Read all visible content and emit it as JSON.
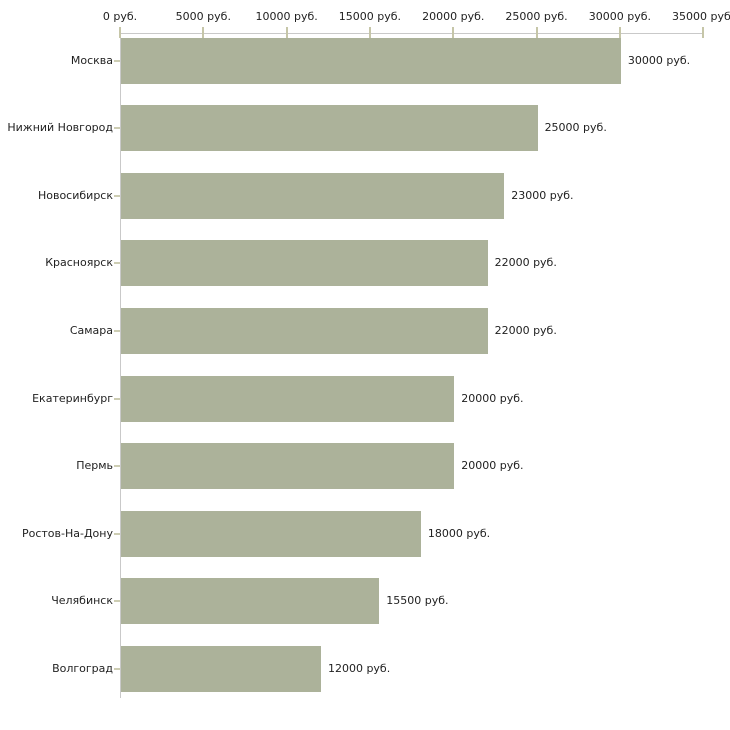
{
  "chart_data": {
    "type": "bar",
    "orientation": "horizontal",
    "title": "",
    "unit": "руб.",
    "categories": [
      "Москва",
      "Нижний Новгород",
      "Новосибирск",
      "Красноярск",
      "Самара",
      "Екатеринбург",
      "Пермь",
      "Ростов-На-Дону",
      "Челябинск",
      "Волгоград"
    ],
    "values": [
      30000,
      25000,
      23000,
      22000,
      22000,
      20000,
      20000,
      18000,
      15500,
      12000
    ],
    "value_labels": [
      "30000 руб.",
      "25000 руб.",
      "23000 руб.",
      "22000 руб.",
      "22000 руб.",
      "20000 руб.",
      "20000 руб.",
      "18000 руб.",
      "15500 руб.",
      "12000 руб."
    ],
    "x_ticks": [
      {
        "value": 0,
        "label": "0 руб."
      },
      {
        "value": 5000,
        "label": "5000 руб."
      },
      {
        "value": 10000,
        "label": "10000 руб."
      },
      {
        "value": 15000,
        "label": "15000 руб."
      },
      {
        "value": 20000,
        "label": "20000 руб."
      },
      {
        "value": 25000,
        "label": "25000 руб."
      },
      {
        "value": 30000,
        "label": "30000 руб."
      },
      {
        "value": 35000,
        "label": "35000 руб."
      }
    ],
    "xlim": [
      0,
      35000
    ],
    "xlabel": "",
    "ylabel": "",
    "grid": false,
    "legend": "none",
    "bar_color": "#acb29a",
    "axis_color": "#c9c9c9",
    "tick_color": "#c6c6a8",
    "category_tick_color": "#cdcdb3",
    "text_color": "#1f1f1f",
    "background_color": "#ffffff"
  }
}
